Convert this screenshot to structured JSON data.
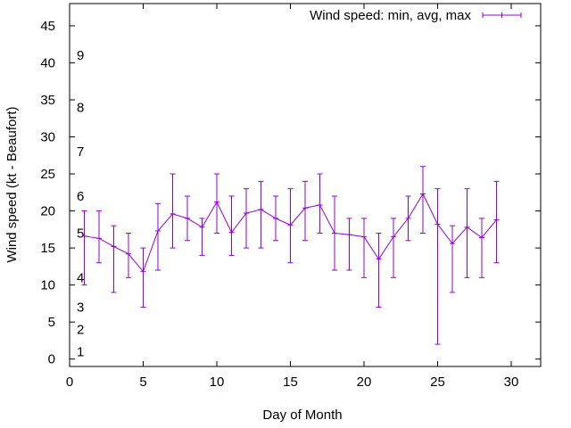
{
  "chart_data": {
    "type": "line",
    "title": "",
    "xlabel": "Day of Month",
    "ylabel": "Wind speed (kt - Beaufort)",
    "xlim": [
      0,
      32
    ],
    "ylim": [
      -1,
      48
    ],
    "xticks": [
      0,
      5,
      10,
      15,
      20,
      25,
      30
    ],
    "yticks": [
      0,
      5,
      10,
      15,
      20,
      25,
      30,
      35,
      40,
      45
    ],
    "grid": false,
    "legend_position": "top-right",
    "series_color": "#9400d3",
    "series": [
      {
        "name": "Wind speed: min, avg, max",
        "points": [
          {
            "x": 1,
            "avg": 16.6,
            "min": 10,
            "max": 20
          },
          {
            "x": 2,
            "avg": 16.3,
            "min": 13,
            "max": 20
          },
          {
            "x": 3,
            "avg": 15.2,
            "min": 9,
            "max": 18
          },
          {
            "x": 4,
            "avg": 14.2,
            "min": 11,
            "max": 17
          },
          {
            "x": 5,
            "avg": 11.8,
            "min": 7,
            "max": 15
          },
          {
            "x": 6,
            "avg": 17.3,
            "min": 12,
            "max": 21
          },
          {
            "x": 7,
            "avg": 19.6,
            "min": 15,
            "max": 25
          },
          {
            "x": 8,
            "avg": 19.0,
            "min": 16,
            "max": 22
          },
          {
            "x": 9,
            "avg": 17.8,
            "min": 14,
            "max": 19
          },
          {
            "x": 10,
            "avg": 21.2,
            "min": 17,
            "max": 25
          },
          {
            "x": 11,
            "avg": 17.1,
            "min": 14,
            "max": 22
          },
          {
            "x": 12,
            "avg": 19.7,
            "min": 15,
            "max": 23
          },
          {
            "x": 13,
            "avg": 20.2,
            "min": 15,
            "max": 24
          },
          {
            "x": 14,
            "avg": 19.0,
            "min": 16,
            "max": 22
          },
          {
            "x": 15,
            "avg": 18.1,
            "min": 13,
            "max": 23
          },
          {
            "x": 16,
            "avg": 20.4,
            "min": 16,
            "max": 24
          },
          {
            "x": 17,
            "avg": 20.8,
            "min": 17,
            "max": 25
          },
          {
            "x": 18,
            "avg": 17.0,
            "min": 12,
            "max": 22
          },
          {
            "x": 19,
            "avg": 16.8,
            "min": 12,
            "max": 19
          },
          {
            "x": 20,
            "avg": 16.5,
            "min": 11,
            "max": 19
          },
          {
            "x": 21,
            "avg": 13.5,
            "min": 7,
            "max": 17
          },
          {
            "x": 22,
            "avg": 16.5,
            "min": 11,
            "max": 19
          },
          {
            "x": 23,
            "avg": 19.0,
            "min": 16,
            "max": 22
          },
          {
            "x": 24,
            "avg": 22.3,
            "min": 17,
            "max": 26
          },
          {
            "x": 25,
            "avg": 18.2,
            "min": 2,
            "max": 23
          },
          {
            "x": 26,
            "avg": 15.6,
            "min": 9,
            "max": 18
          },
          {
            "x": 27,
            "avg": 17.8,
            "min": 11,
            "max": 23
          },
          {
            "x": 28,
            "avg": 16.4,
            "min": 11,
            "max": 19
          },
          {
            "x": 29,
            "avg": 18.8,
            "min": 13,
            "max": 24
          }
        ]
      }
    ],
    "beaufort_labels": [
      {
        "label": "1",
        "y": 1
      },
      {
        "label": "2",
        "y": 4
      },
      {
        "label": "3",
        "y": 7
      },
      {
        "label": "4",
        "y": 11
      },
      {
        "label": "5",
        "y": 17
      },
      {
        "label": "6",
        "y": 22
      },
      {
        "label": "7",
        "y": 28
      },
      {
        "label": "8",
        "y": 34
      },
      {
        "label": "9",
        "y": 41
      }
    ]
  }
}
